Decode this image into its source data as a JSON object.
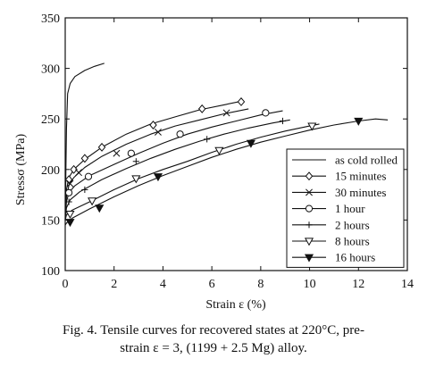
{
  "chart_data": {
    "type": "line",
    "xlabel": "Strain ε (%)",
    "ylabel": "Stressσ (MPa)",
    "xlim": [
      0,
      14
    ],
    "ylim": [
      100,
      350
    ],
    "xticks": [
      0,
      2,
      4,
      6,
      8,
      10,
      12,
      14
    ],
    "yticks": [
      100,
      150,
      200,
      250,
      300,
      350
    ],
    "grid": false,
    "legend_position": "bottom-right",
    "series": [
      {
        "name": "as cold rolled",
        "marker": "none",
        "x": [
          0.0,
          0.05,
          0.1,
          0.2,
          0.4,
          0.8,
          1.2,
          1.6
        ],
        "y": [
          150,
          240,
          275,
          285,
          292,
          298,
          302,
          305
        ]
      },
      {
        "name": "15 minutes",
        "marker": "diamond-open",
        "x": [
          0.0,
          0.05,
          0.15,
          0.35,
          0.8,
          1.5,
          2.5,
          3.5,
          4.5,
          5.5,
          6.5,
          7.3
        ],
        "y": [
          150,
          180,
          192,
          200,
          210,
          222,
          235,
          245,
          252,
          259,
          264,
          268
        ],
        "marker_x": [
          0.15,
          0.35,
          0.8,
          1.5,
          3.6,
          5.6,
          7.2
        ],
        "marker_y": [
          190,
          200,
          211,
          222,
          244,
          260,
          267
        ]
      },
      {
        "name": "30 minutes",
        "marker": "x",
        "x": [
          0.0,
          0.05,
          0.15,
          0.35,
          0.8,
          1.5,
          2.5,
          3.5,
          4.5,
          5.5,
          6.5,
          7.5
        ],
        "y": [
          150,
          173,
          184,
          192,
          202,
          213,
          225,
          235,
          243,
          249,
          255,
          260
        ],
        "marker_x": [
          0.2,
          0.55,
          2.1,
          3.8,
          6.6
        ],
        "marker_y": [
          186,
          197,
          216,
          237,
          256
        ]
      },
      {
        "name": "1 hour",
        "marker": "circle-open",
        "x": [
          0.0,
          0.05,
          0.15,
          0.4,
          1.0,
          2.0,
          3.0,
          4.0,
          5.0,
          6.0,
          7.0,
          8.0,
          8.9
        ],
        "y": [
          150,
          168,
          177,
          184,
          194,
          205,
          216,
          226,
          235,
          242,
          248,
          254,
          258
        ],
        "marker_x": [
          0.15,
          0.95,
          2.7,
          4.7,
          8.2
        ],
        "marker_y": [
          177,
          193,
          216,
          235,
          256
        ]
      },
      {
        "name": "2 hours",
        "marker": "plus",
        "x": [
          0.0,
          0.05,
          0.2,
          0.6,
          1.5,
          2.5,
          3.5,
          4.5,
          5.5,
          6.5,
          7.5,
          8.5,
          9.2
        ],
        "y": [
          150,
          162,
          170,
          178,
          190,
          201,
          211,
          220,
          228,
          235,
          241,
          246,
          249
        ],
        "marker_x": [
          0.15,
          0.8,
          2.9,
          5.8,
          8.9
        ],
        "marker_y": [
          168,
          180,
          208,
          230,
          248
        ]
      },
      {
        "name": "8 hours",
        "marker": "triangle-down-open",
        "x": [
          0.0,
          0.05,
          0.3,
          1.0,
          2.0,
          3.0,
          4.0,
          5.0,
          6.0,
          7.0,
          8.0,
          9.0,
          10.0,
          10.4
        ],
        "y": [
          150,
          155,
          160,
          168,
          180,
          191,
          200,
          208,
          217,
          225,
          232,
          238,
          243,
          245
        ],
        "marker_x": [
          0.2,
          1.1,
          2.9,
          6.3,
          10.1
        ],
        "marker_y": [
          156,
          169,
          191,
          219,
          243
        ]
      },
      {
        "name": "16 hours",
        "marker": "triangle-down-filled",
        "x": [
          0.0,
          0.05,
          0.3,
          1.0,
          2.0,
          3.0,
          4.0,
          5.0,
          6.0,
          7.0,
          8.0,
          9.0,
          10.0,
          11.0,
          12.0,
          12.7,
          13.2
        ],
        "y": [
          145,
          147,
          152,
          161,
          173,
          184,
          194,
          203,
          212,
          220,
          227,
          233,
          239,
          244,
          248,
          250,
          249
        ],
        "marker_x": [
          0.2,
          1.4,
          3.8,
          7.6,
          12.0
        ],
        "marker_y": [
          148,
          162,
          193,
          226,
          248
        ]
      }
    ]
  },
  "caption": {
    "line1": "Fig. 4. Tensile curves for recovered states at 220°C, pre-",
    "line2": "strain ε = 3, (1199 + 2.5 Mg) alloy."
  }
}
